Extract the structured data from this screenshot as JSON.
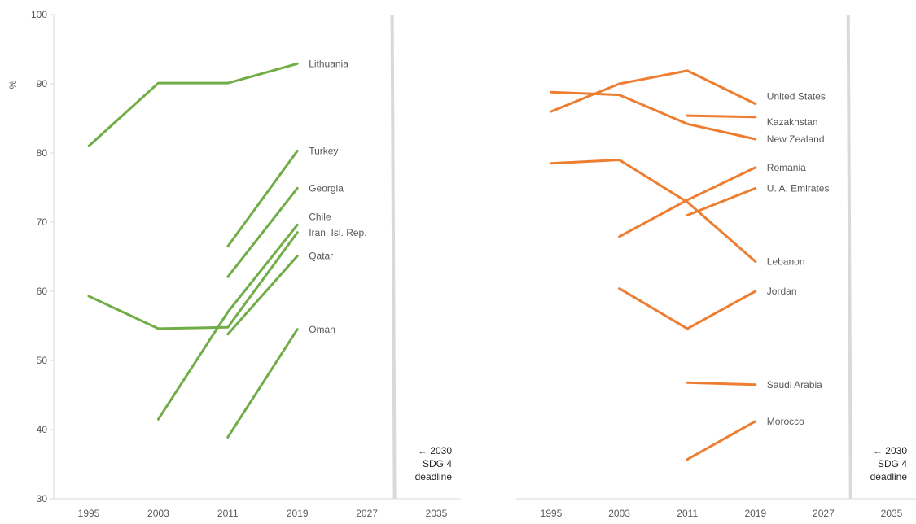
{
  "chart_data": [
    {
      "type": "line",
      "title": "",
      "xlabel": "",
      "ylabel": "%",
      "x_ticks": [
        "1995",
        "2003",
        "2011",
        "2019",
        "2027",
        "2035"
      ],
      "xlim": [
        1995,
        2035
      ],
      "y_ticks": [
        "30",
        "40",
        "50",
        "60",
        "70",
        "80",
        "90",
        "100"
      ],
      "ylim": [
        30,
        100
      ],
      "grid": false,
      "color": "#70AD47",
      "reference_line": {
        "x": 2030,
        "label_lines": [
          "← 2030",
          "SDG 4",
          "deadline"
        ]
      },
      "series": [
        {
          "name": "Lithuania",
          "points": [
            [
              1995,
              81.0
            ],
            [
              2003,
              90.1
            ],
            [
              2011,
              90.1
            ],
            [
              2019,
              92.9
            ]
          ]
        },
        {
          "name": "Turkey",
          "points": [
            [
              2011,
              66.5
            ],
            [
              2019,
              80.3
            ]
          ]
        },
        {
          "name": "Georgia",
          "points": [
            [
              2011,
              62.1
            ],
            [
              2019,
              74.9
            ]
          ]
        },
        {
          "name": "Chile",
          "points": [
            [
              2003,
              41.5
            ],
            [
              2011,
              57.0
            ],
            [
              2019,
              69.6
            ]
          ]
        },
        {
          "name": "Iran, Isl. Rep.",
          "points": [
            [
              1995,
              59.3
            ],
            [
              2003,
              54.6
            ],
            [
              2011,
              54.8
            ],
            [
              2019,
              68.5
            ]
          ]
        },
        {
          "name": "Qatar",
          "points": [
            [
              2011,
              53.8
            ],
            [
              2019,
              65.1
            ]
          ]
        },
        {
          "name": "Oman",
          "points": [
            [
              2011,
              38.9
            ],
            [
              2019,
              54.5
            ]
          ]
        }
      ]
    },
    {
      "type": "line",
      "title": "",
      "xlabel": "",
      "ylabel": "",
      "x_ticks": [
        "1995",
        "2003",
        "2011",
        "2019",
        "2027",
        "2035"
      ],
      "xlim": [
        1995,
        2035
      ],
      "ylim": [
        30,
        100
      ],
      "grid": false,
      "color": "#ED7D31",
      "reference_line": {
        "x": 2030,
        "label_lines": [
          "← 2030",
          "SDG 4",
          "deadline"
        ]
      },
      "series": [
        {
          "name": "United States",
          "points": [
            [
              1995,
              86.0
            ],
            [
              2003,
              90.0
            ],
            [
              2011,
              91.9
            ],
            [
              2019,
              87.1
            ]
          ]
        },
        {
          "name": "Kazakhstan",
          "points": [
            [
              2011,
              85.4
            ],
            [
              2019,
              85.2
            ]
          ]
        },
        {
          "name": "New Zealand",
          "points": [
            [
              1995,
              88.8
            ],
            [
              2003,
              88.4
            ],
            [
              2011,
              84.2
            ],
            [
              2019,
              82.0
            ]
          ]
        },
        {
          "name": "Romania",
          "points": [
            [
              2003,
              67.9
            ],
            [
              2011,
              73.2
            ],
            [
              2019,
              77.9
            ]
          ]
        },
        {
          "name": "U. A. Emirates",
          "points": [
            [
              2011,
              71.0
            ],
            [
              2019,
              74.9
            ]
          ]
        },
        {
          "name": "Lebanon",
          "points": [
            [
              1995,
              78.5
            ],
            [
              2003,
              79.0
            ],
            [
              2011,
              72.9
            ],
            [
              2019,
              64.3
            ]
          ]
        },
        {
          "name": "Jordan",
          "points": [
            [
              2003,
              60.4
            ],
            [
              2011,
              54.6
            ],
            [
              2019,
              60.0
            ]
          ]
        },
        {
          "name": "Saudi Arabia",
          "points": [
            [
              2011,
              46.8
            ],
            [
              2019,
              46.5
            ]
          ]
        },
        {
          "name": "Morocco",
          "points": [
            [
              2011,
              35.7
            ],
            [
              2019,
              41.2
            ]
          ]
        }
      ]
    }
  ]
}
